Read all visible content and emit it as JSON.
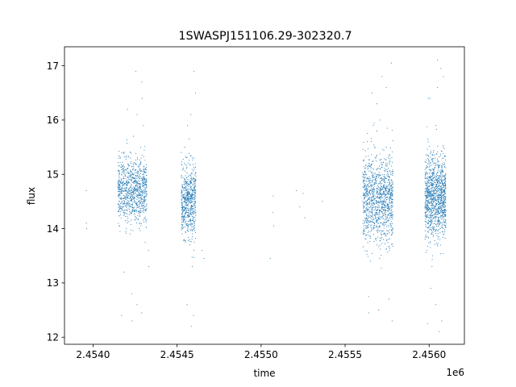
{
  "chart_data": {
    "type": "scatter",
    "title": "1SWASPJ151106.29-302320.7",
    "xlabel": "time",
    "ylabel": "flux",
    "x_offset_label": "1e6",
    "xlim": [
      2453830,
      2456210
    ],
    "ylim": [
      11.87,
      17.35
    ],
    "x_ticks": [
      2454000,
      2454500,
      2455000,
      2455500,
      2456000
    ],
    "x_tick_labels": [
      "2.4540",
      "2.4545",
      "2.4550",
      "2.4555",
      "2.4560"
    ],
    "y_ticks": [
      12,
      13,
      14,
      15,
      16,
      17
    ],
    "y_tick_labels": [
      "12",
      "13",
      "14",
      "15",
      "16",
      "17"
    ],
    "grid": false,
    "marker_color": "#1f77b4",
    "series": [
      {
        "points": [
          [
            2453960,
            14.1
          ],
          [
            2453960,
            14.7
          ],
          [
            2453962,
            14.0
          ],
          [
            2454162,
            14.78
          ],
          [
            2454180,
            14.55
          ],
          [
            2454200,
            14.7
          ],
          [
            2454215,
            14.4
          ],
          [
            2454232,
            14.95
          ],
          [
            2454250,
            14.48
          ],
          [
            2454265,
            14.85
          ],
          [
            2454285,
            14.3
          ],
          [
            2454300,
            15.1
          ],
          [
            2454318,
            14.6
          ],
          [
            2454170,
            15.4
          ],
          [
            2454195,
            13.95
          ],
          [
            2454240,
            15.7
          ],
          [
            2454275,
            14.0
          ],
          [
            2454300,
            15.9
          ],
          [
            2454310,
            13.75
          ],
          [
            2454292,
            16.4
          ],
          [
            2454262,
            16.1
          ],
          [
            2454222,
            15.3
          ],
          [
            2454205,
            16.2
          ],
          [
            2454185,
            13.2
          ],
          [
            2454230,
            12.8
          ],
          [
            2454262,
            12.6
          ],
          [
            2454290,
            12.45
          ],
          [
            2454232,
            12.3
          ],
          [
            2454255,
            16.9
          ],
          [
            2454290,
            16.7
          ],
          [
            2454330,
            13.6
          ],
          [
            2454332,
            13.3
          ],
          [
            2454170,
            12.4
          ],
          [
            2454540,
            14.6
          ],
          [
            2454555,
            14.3
          ],
          [
            2454570,
            14.9
          ],
          [
            2454585,
            14.4
          ],
          [
            2454600,
            14.75
          ],
          [
            2454545,
            15.5
          ],
          [
            2454562,
            15.9
          ],
          [
            2454575,
            13.7
          ],
          [
            2454590,
            13.3
          ],
          [
            2454600,
            15.3
          ],
          [
            2454582,
            16.1
          ],
          [
            2454610,
            16.5
          ],
          [
            2454600,
            16.9
          ],
          [
            2454560,
            12.6
          ],
          [
            2454598,
            12.4
          ],
          [
            2454585,
            12.2
          ],
          [
            2454648,
            13.6
          ],
          [
            2454660,
            13.45
          ],
          [
            2455070,
            14.3
          ],
          [
            2455072,
            14.6
          ],
          [
            2455075,
            14.05
          ],
          [
            2455055,
            13.45
          ],
          [
            2455210,
            14.7
          ],
          [
            2455230,
            14.4
          ],
          [
            2455250,
            14.65
          ],
          [
            2455260,
            14.2
          ],
          [
            2455365,
            14.5
          ],
          [
            2455620,
            14.3
          ],
          [
            2455635,
            14.8
          ],
          [
            2455650,
            14.2
          ],
          [
            2455665,
            14.6
          ],
          [
            2455680,
            14.9
          ],
          [
            2455695,
            14.35
          ],
          [
            2455710,
            14.7
          ],
          [
            2455725,
            14.45
          ],
          [
            2455740,
            14.85
          ],
          [
            2455755,
            14.25
          ],
          [
            2455770,
            14.6
          ],
          [
            2455632,
            15.6
          ],
          [
            2455650,
            13.4
          ],
          [
            2455668,
            15.9
          ],
          [
            2455690,
            13.7
          ],
          [
            2455710,
            16.0
          ],
          [
            2455728,
            13.8
          ],
          [
            2455745,
            15.5
          ],
          [
            2455765,
            13.6
          ],
          [
            2455640,
            12.75
          ],
          [
            2455660,
            16.5
          ],
          [
            2455690,
            16.3
          ],
          [
            2455720,
            16.8
          ],
          [
            2455745,
            16.6
          ],
          [
            2455775,
            17.05
          ],
          [
            2455700,
            12.5
          ],
          [
            2455760,
            12.7
          ],
          [
            2455640,
            12.45
          ],
          [
            2455780,
            12.3
          ],
          [
            2455985,
            14.6
          ],
          [
            2456000,
            14.3
          ],
          [
            2456015,
            14.8
          ],
          [
            2456030,
            14.5
          ],
          [
            2456045,
            14.95
          ],
          [
            2456060,
            14.4
          ],
          [
            2456075,
            14.75
          ],
          [
            2456090,
            14.55
          ],
          [
            2455995,
            15.6
          ],
          [
            2456020,
            13.5
          ],
          [
            2456040,
            15.9
          ],
          [
            2456065,
            13.8
          ],
          [
            2456085,
            15.5
          ],
          [
            2456005,
            16.4
          ],
          [
            2456050,
            16.6
          ],
          [
            2456070,
            16.95
          ],
          [
            2456085,
            16.8
          ],
          [
            2456050,
            17.1
          ],
          [
            2456010,
            12.9
          ],
          [
            2456040,
            12.6
          ],
          [
            2456075,
            12.3
          ],
          [
            2456060,
            12.1
          ],
          [
            2455990,
            12.25
          ],
          [
            2455995,
            16.4
          ],
          [
            2456100,
            14.1
          ]
        ]
      }
    ],
    "clusters": [
      {
        "x_start": 2454148,
        "x_end": 2454320,
        "count": 900,
        "center": 14.7,
        "spread": 0.3
      },
      {
        "x_start": 2454525,
        "x_end": 2454612,
        "count": 620,
        "center": 14.5,
        "spread": 0.33
      },
      {
        "x_start": 2455605,
        "x_end": 2455785,
        "count": 1150,
        "center": 14.55,
        "spread": 0.4
      },
      {
        "x_start": 2455975,
        "x_end": 2456100,
        "count": 1150,
        "center": 14.6,
        "spread": 0.38
      }
    ]
  }
}
